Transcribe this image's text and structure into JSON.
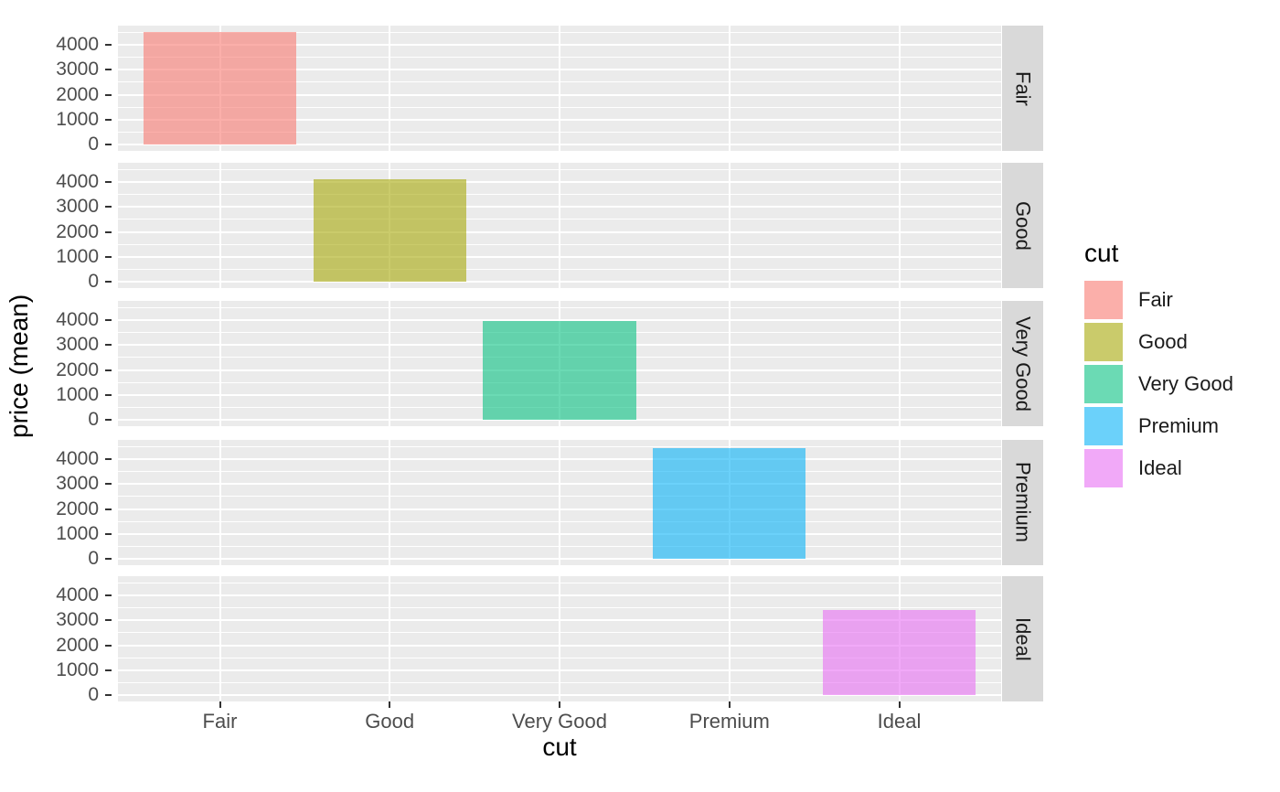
{
  "figure": {
    "background": "#FFFFFF",
    "panel_background": "#EBEBEB",
    "grid_color": "#FFFFFF",
    "strip_background": "#D9D9D9",
    "strip_text_color": "#1A1A1A",
    "axis_text_color": "#4D4D4D",
    "tick_mark_color": "#333333"
  },
  "chart_data": {
    "type": "bar",
    "title": "",
    "xlabel": "cut",
    "ylabel": "price (mean)",
    "categories": [
      "Fair",
      "Good",
      "Very Good",
      "Premium",
      "Ideal"
    ],
    "values": [
      4500,
      4100,
      3950,
      4420,
      3420
    ],
    "bar_colors": [
      "#F8766D",
      "#A3A500",
      "#00BF7D",
      "#00B0F6",
      "#E76BF3"
    ],
    "bar_alpha": 0.58,
    "bar_width_fraction": 0.9,
    "facet_variable": "cut",
    "facet_labels": [
      "Fair",
      "Good",
      "Very Good",
      "Premium",
      "Ideal"
    ],
    "facet_layout": "rows",
    "ylim": [
      -240,
      4760
    ],
    "y_major_ticks": [
      0,
      1000,
      2000,
      3000,
      4000
    ],
    "y_minor_ticks": [
      500,
      1500,
      2500,
      3500,
      4500
    ],
    "y_tick_labels": [
      "0",
      "1000",
      "2000",
      "3000",
      "4000"
    ],
    "x_tick_labels": [
      "Fair",
      "Good",
      "Very Good",
      "Premium",
      "Ideal"
    ],
    "grid": true,
    "legend": {
      "position": "right",
      "title": "cut",
      "labels": [
        "Fair",
        "Good",
        "Very Good",
        "Premium",
        "Ideal"
      ]
    }
  }
}
